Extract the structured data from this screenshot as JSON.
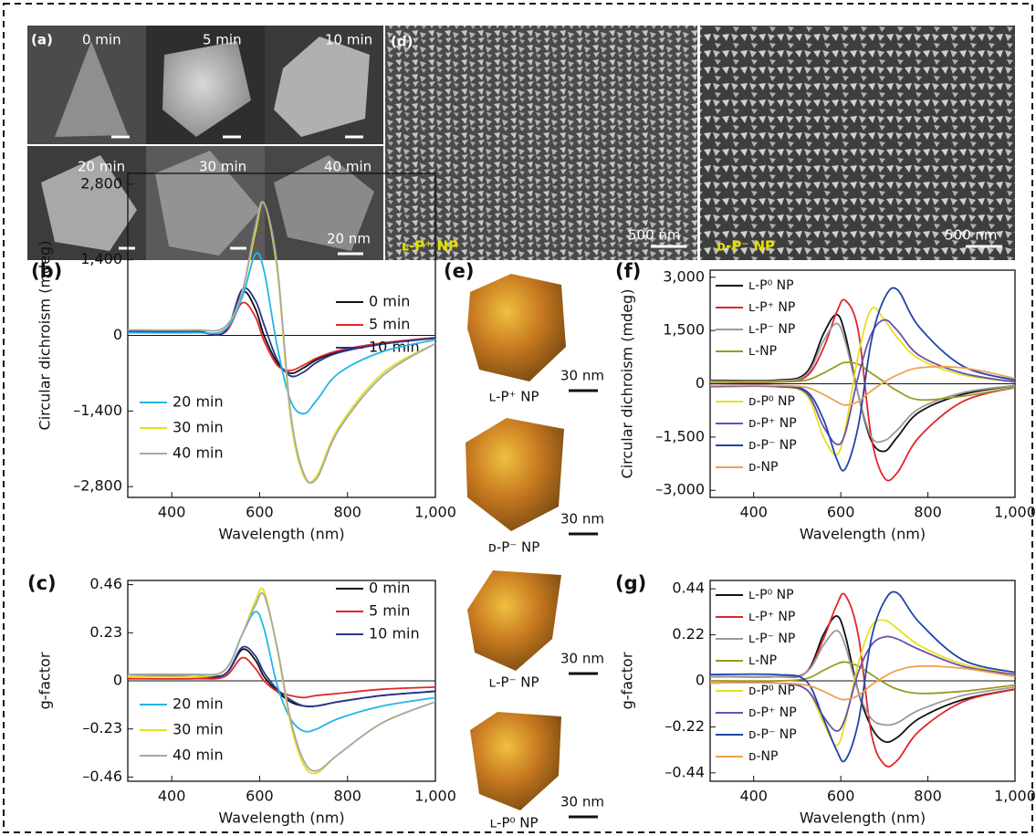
{
  "images": {
    "a": {
      "label": "(a)",
      "tiles": [
        "0 min",
        "5 min",
        "10 min",
        "20 min",
        "30 min",
        "40 min"
      ],
      "scale": "20 nm"
    },
    "d": {
      "label": "(d)",
      "panels": [
        {
          "caption": "ʟ-P⁺ NP",
          "scale": "500 nm"
        },
        {
          "caption": "ᴅ-P⁻ NP",
          "scale": "500 nm"
        }
      ]
    },
    "e": {
      "label": "(e)",
      "items": [
        {
          "caption": "ʟ-P⁺ NP",
          "scale": "30 nm"
        },
        {
          "caption": "ᴅ-P⁻ NP",
          "scale": "30 nm"
        },
        {
          "caption": "ʟ-P⁻ NP",
          "scale": "30 nm"
        },
        {
          "caption": "ʟ-P⁰ NP",
          "scale": "30 nm"
        }
      ]
    }
  },
  "chart_data": [
    {
      "type": "line",
      "panel_label": "(b)",
      "xlabel": "Wavelength (nm)",
      "ylabel": "Circular dichroism (mdeg)",
      "x": [
        300,
        450,
        520,
        560,
        590,
        610,
        640,
        670,
        700,
        730,
        780,
        880,
        1000
      ],
      "xlim": [
        300,
        1000
      ],
      "xticks": [
        400,
        600,
        800,
        {
          "value": 1000,
          "label": "1,000"
        }
      ],
      "ylim": [
        -3000,
        3000
      ],
      "yticks": [
        {
          "value": -2800,
          "label": "–2,800"
        },
        {
          "value": -1400,
          "label": "–1,400"
        },
        0,
        {
          "value": 1400,
          "label": "1,400"
        },
        {
          "value": 2800,
          "label": "2,800"
        }
      ],
      "series": [
        {
          "name": "0 min",
          "color": "#111111",
          "values": [
            80,
            80,
            60,
            800,
            500,
            0,
            -500,
            -700,
            -600,
            -450,
            -300,
            -150,
            -50
          ]
        },
        {
          "name": "5 min",
          "color": "#e0262b",
          "values": [
            60,
            60,
            50,
            600,
            350,
            -100,
            -550,
            -650,
            -550,
            -420,
            -280,
            -140,
            -40
          ]
        },
        {
          "name": "10 min",
          "color": "#26358f",
          "values": [
            70,
            70,
            60,
            850,
            650,
            200,
            -450,
            -750,
            -680,
            -500,
            -320,
            -160,
            -50
          ]
        },
        {
          "name": "20 min",
          "color": "#22b5e8",
          "values": [
            50,
            50,
            100,
            700,
            1500,
            1200,
            -200,
            -1200,
            -1450,
            -1200,
            -700,
            -300,
            -80
          ]
        },
        {
          "name": "30 min",
          "color": "#e6e020",
          "values": [
            100,
            100,
            150,
            800,
            1900,
            2450,
            1200,
            -1500,
            -2600,
            -2600,
            -1700,
            -700,
            -150
          ]
        },
        {
          "name": "40 min",
          "color": "#a8a8a8",
          "values": [
            100,
            100,
            150,
            800,
            2000,
            2450,
            1300,
            -1400,
            -2550,
            -2650,
            -1750,
            -750,
            -150
          ]
        }
      ]
    },
    {
      "type": "line",
      "panel_label": "(c)",
      "xlabel": "Wavelength (nm)",
      "ylabel": "g-factor",
      "x": [
        300,
        450,
        520,
        560,
        590,
        610,
        640,
        670,
        700,
        730,
        780,
        880,
        1000
      ],
      "xlim": [
        300,
        1000
      ],
      "xticks": [
        400,
        600,
        800,
        {
          "value": 1000,
          "label": "1,000"
        }
      ],
      "ylim": [
        -0.48,
        0.48
      ],
      "yticks": [
        {
          "value": -0.46,
          "label": "–0.46"
        },
        {
          "value": -0.23,
          "label": "–0.23"
        },
        0,
        0.23,
        0.46
      ],
      "series": [
        {
          "name": "0 min",
          "color": "#111111",
          "values": [
            0.03,
            0.03,
            0.03,
            0.15,
            0.1,
            0.02,
            -0.05,
            -0.1,
            -0.12,
            -0.12,
            -0.1,
            -0.07,
            -0.05
          ]
        },
        {
          "name": "5 min",
          "color": "#e0262b",
          "values": [
            0.01,
            0.01,
            0.02,
            0.11,
            0.06,
            0.0,
            -0.05,
            -0.07,
            -0.08,
            -0.07,
            -0.06,
            -0.04,
            -0.03
          ]
        },
        {
          "name": "10 min",
          "color": "#26358f",
          "values": [
            0.02,
            0.02,
            0.03,
            0.16,
            0.12,
            0.04,
            -0.04,
            -0.09,
            -0.12,
            -0.12,
            -0.1,
            -0.07,
            -0.05
          ]
        },
        {
          "name": "20 min",
          "color": "#22b5e8",
          "values": [
            0.03,
            0.03,
            0.05,
            0.22,
            0.33,
            0.25,
            -0.02,
            -0.18,
            -0.24,
            -0.23,
            -0.18,
            -0.12,
            -0.08
          ]
        },
        {
          "name": "30 min",
          "color": "#e6e020",
          "values": [
            0.02,
            0.02,
            0.05,
            0.22,
            0.38,
            0.43,
            0.15,
            -0.2,
            -0.4,
            -0.44,
            -0.35,
            -0.2,
            -0.1
          ]
        },
        {
          "name": "40 min",
          "color": "#a8a8a8",
          "values": [
            0.03,
            0.03,
            0.05,
            0.22,
            0.36,
            0.41,
            0.16,
            -0.18,
            -0.38,
            -0.43,
            -0.35,
            -0.2,
            -0.1
          ]
        }
      ]
    },
    {
      "type": "line",
      "panel_label": "(f)",
      "xlabel": "Wavelength (nm)",
      "ylabel": "Circular dichroism (mdeg)",
      "x": [
        300,
        450,
        520,
        560,
        590,
        610,
        640,
        670,
        700,
        730,
        780,
        880,
        1000
      ],
      "xlim": [
        300,
        1000
      ],
      "xticks": [
        400,
        600,
        800,
        {
          "value": 1000,
          "label": "1,000"
        }
      ],
      "ylim": [
        -3200,
        3200
      ],
      "yticks": [
        {
          "value": -3000,
          "label": "–3,000"
        },
        {
          "value": -1500,
          "label": "–1,500"
        },
        0,
        {
          "value": 1500,
          "label": "1,500"
        },
        {
          "value": 3000,
          "label": "3,000"
        }
      ],
      "series": [
        {
          "name": "ʟ-P⁰ NP",
          "color": "#111111",
          "values": [
            100,
            100,
            300,
            1400,
            1950,
            1400,
            -300,
            -1600,
            -1900,
            -1500,
            -800,
            -300,
            -50
          ]
        },
        {
          "name": "ʟ-P⁺ NP",
          "color": "#e0262b",
          "values": [
            50,
            50,
            200,
            1000,
            2000,
            2350,
            1500,
            -1500,
            -2650,
            -2500,
            -1500,
            -500,
            -100
          ]
        },
        {
          "name": "ʟ-P⁻ NP",
          "color": "#9a9a9a",
          "values": [
            80,
            80,
            250,
            1200,
            1700,
            1200,
            -300,
            -1500,
            -1600,
            -1300,
            -700,
            -250,
            -50
          ]
        },
        {
          "name": "ʟ-NP",
          "color": "#9a9a20",
          "values": [
            50,
            50,
            100,
            300,
            500,
            600,
            550,
            300,
            50,
            -200,
            -450,
            -350,
            -100
          ]
        },
        {
          "name": "ᴅ-P⁰ NP",
          "color": "#e6e020",
          "values": [
            -80,
            -80,
            -300,
            -1500,
            -2000,
            -1300,
            800,
            2100,
            1800,
            1300,
            700,
            250,
            50
          ]
        },
        {
          "name": "ᴅ-P⁺ NP",
          "color": "#6a50b0",
          "values": [
            -80,
            -80,
            -250,
            -1200,
            -1700,
            -1400,
            200,
            1400,
            1800,
            1500,
            800,
            300,
            50
          ]
        },
        {
          "name": "ᴅ-P⁻ NP",
          "color": "#1f45a8",
          "values": [
            -50,
            -50,
            -200,
            -1000,
            -2100,
            -2400,
            -1200,
            1200,
            2400,
            2650,
            1600,
            500,
            100
          ]
        },
        {
          "name": "ᴅ-NP",
          "color": "#f0a050",
          "values": [
            -50,
            -50,
            -100,
            -300,
            -500,
            -600,
            -500,
            -200,
            50,
            250,
            450,
            450,
            150
          ]
        }
      ]
    },
    {
      "type": "line",
      "panel_label": "(g)",
      "xlabel": "Wavelength (nm)",
      "ylabel": "g-factor",
      "x": [
        300,
        450,
        520,
        560,
        590,
        610,
        640,
        670,
        700,
        730,
        780,
        880,
        1000
      ],
      "xlim": [
        300,
        1000
      ],
      "xticks": [
        400,
        600,
        800,
        {
          "value": 1000,
          "label": "1,000"
        }
      ],
      "ylim": [
        -0.48,
        0.48
      ],
      "yticks": [
        {
          "value": -0.44,
          "label": "–0.44"
        },
        {
          "value": -0.22,
          "label": "–0.22"
        },
        0,
        0.22,
        0.44
      ],
      "series": [
        {
          "name": "ʟ-P⁰ NP",
          "color": "#111111",
          "values": [
            0.02,
            0.02,
            0.04,
            0.22,
            0.31,
            0.22,
            -0.05,
            -0.22,
            -0.29,
            -0.27,
            -0.18,
            -0.09,
            -0.04
          ]
        },
        {
          "name": "ʟ-P⁺ NP",
          "color": "#e0262b",
          "values": [
            0.02,
            0.02,
            0.04,
            0.2,
            0.36,
            0.41,
            0.22,
            -0.25,
            -0.4,
            -0.38,
            -0.24,
            -0.1,
            -0.04
          ]
        },
        {
          "name": "ʟ-P⁻ NP",
          "color": "#9a9a9a",
          "values": [
            0.02,
            0.02,
            0.04,
            0.17,
            0.24,
            0.17,
            -0.05,
            -0.18,
            -0.21,
            -0.2,
            -0.14,
            -0.07,
            -0.03
          ]
        },
        {
          "name": "ʟ-NP",
          "color": "#9a9a20",
          "values": [
            0.0,
            0.0,
            0.01,
            0.05,
            0.08,
            0.09,
            0.07,
            0.03,
            -0.01,
            -0.04,
            -0.06,
            -0.05,
            -0.02
          ]
        },
        {
          "name": "ᴅ-P⁰ NP",
          "color": "#e6e020",
          "values": [
            -0.01,
            -0.01,
            -0.04,
            -0.2,
            -0.31,
            -0.2,
            0.08,
            0.26,
            0.29,
            0.25,
            0.17,
            0.08,
            0.03
          ]
        },
        {
          "name": "ᴅ-P⁺ NP",
          "color": "#6a50b0",
          "values": [
            -0.01,
            -0.01,
            -0.04,
            -0.17,
            -0.24,
            -0.18,
            0.04,
            0.17,
            0.21,
            0.2,
            0.15,
            0.07,
            0.03
          ]
        },
        {
          "name": "ᴅ-P⁻ NP",
          "color": "#1f45a8",
          "values": [
            0.03,
            0.03,
            0.0,
            -0.18,
            -0.33,
            -0.38,
            -0.2,
            0.2,
            0.38,
            0.42,
            0.28,
            0.1,
            0.04
          ]
        },
        {
          "name": "ᴅ-NP",
          "color": "#f0a050",
          "values": [
            -0.01,
            -0.01,
            -0.02,
            -0.05,
            -0.08,
            -0.09,
            -0.07,
            -0.02,
            0.02,
            0.05,
            0.07,
            0.06,
            0.02
          ]
        }
      ]
    }
  ]
}
